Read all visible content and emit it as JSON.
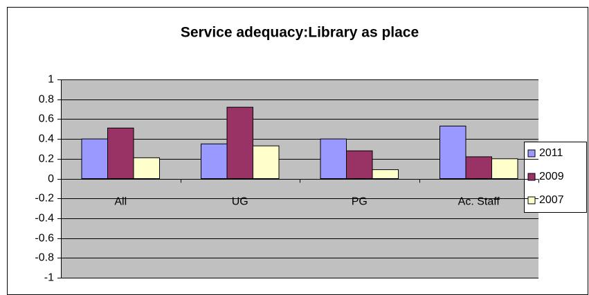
{
  "chart_data": {
    "type": "bar",
    "title": "Service adequacy:Library as place",
    "categories": [
      "All",
      "UG",
      "PG",
      "Ac. Staff"
    ],
    "series": [
      {
        "name": "2011",
        "color": "#9999ff",
        "values": [
          0.4,
          0.35,
          0.4,
          0.53
        ]
      },
      {
        "name": "2009",
        "color": "#993366",
        "values": [
          0.51,
          0.72,
          0.28,
          0.22
        ]
      },
      {
        "name": "2007",
        "color": "#ffffcc",
        "values": [
          0.21,
          0.33,
          0.09,
          0.2
        ]
      }
    ],
    "ylim": [
      -1,
      1
    ],
    "yticks": [
      -1,
      -0.8,
      -0.6,
      -0.4,
      -0.2,
      0,
      0.2,
      0.4,
      0.6,
      0.8,
      1
    ],
    "grid": true,
    "legend": "right",
    "plot_background": "#c0c0c0"
  }
}
